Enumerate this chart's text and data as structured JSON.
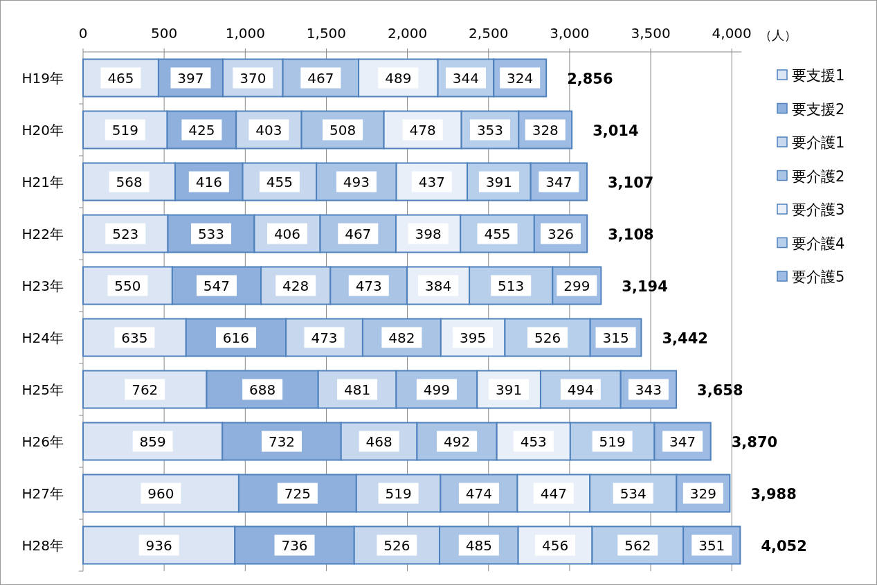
{
  "chart_data": {
    "type": "bar",
    "orientation": "horizontal",
    "stacked": true,
    "xlabel": "（人）",
    "categories": [
      "H19年",
      "H20年",
      "H21年",
      "H22年",
      "H23年",
      "H24年",
      "H25年",
      "H26年",
      "H27年",
      "H28年"
    ],
    "series": [
      {
        "name": "要支援1",
        "color": "#dbe5f3",
        "values": [
          465,
          519,
          568,
          523,
          550,
          635,
          762,
          859,
          960,
          936
        ]
      },
      {
        "name": "要支援2",
        "color": "#8fb0dc",
        "values": [
          397,
          425,
          416,
          533,
          547,
          616,
          688,
          732,
          725,
          736
        ]
      },
      {
        "name": "要介護1",
        "color": "#c6d7ee",
        "values": [
          370,
          403,
          455,
          406,
          428,
          473,
          481,
          468,
          519,
          526
        ]
      },
      {
        "name": "要介護2",
        "color": "#aac4e6",
        "values": [
          467,
          508,
          493,
          467,
          473,
          482,
          499,
          492,
          474,
          485
        ]
      },
      {
        "name": "要介護3",
        "color": "#e8eff9",
        "values": [
          489,
          478,
          437,
          398,
          384,
          395,
          391,
          453,
          447,
          456
        ]
      },
      {
        "name": "要介護4",
        "color": "#b8cfeb",
        "values": [
          344,
          353,
          391,
          455,
          513,
          526,
          494,
          519,
          534,
          562
        ]
      },
      {
        "name": "要介護5",
        "color": "#9dbbe3",
        "values": [
          324,
          328,
          347,
          326,
          299,
          315,
          343,
          347,
          329,
          351
        ]
      }
    ],
    "xlim": [
      0,
      4060
    ],
    "xticks": [
      {
        "value": 0,
        "label": "0"
      },
      {
        "value": 500,
        "label": "500"
      },
      {
        "value": 1000,
        "label": "1,000"
      },
      {
        "value": 1500,
        "label": "1,500"
      },
      {
        "value": 2000,
        "label": "2,000"
      },
      {
        "value": 2500,
        "label": "2,500"
      },
      {
        "value": 3000,
        "label": "3,000"
      },
      {
        "value": 3500,
        "label": "3,500"
      },
      {
        "value": 4000,
        "label": "4,000"
      }
    ],
    "grid": "x",
    "data_labels": true,
    "legend": "right",
    "totals": [
      "2,856",
      "3,014",
      "3,107",
      "3,108",
      "3,194",
      "3,442",
      "3,658",
      "3,870",
      "3,988",
      "4,052"
    ]
  }
}
